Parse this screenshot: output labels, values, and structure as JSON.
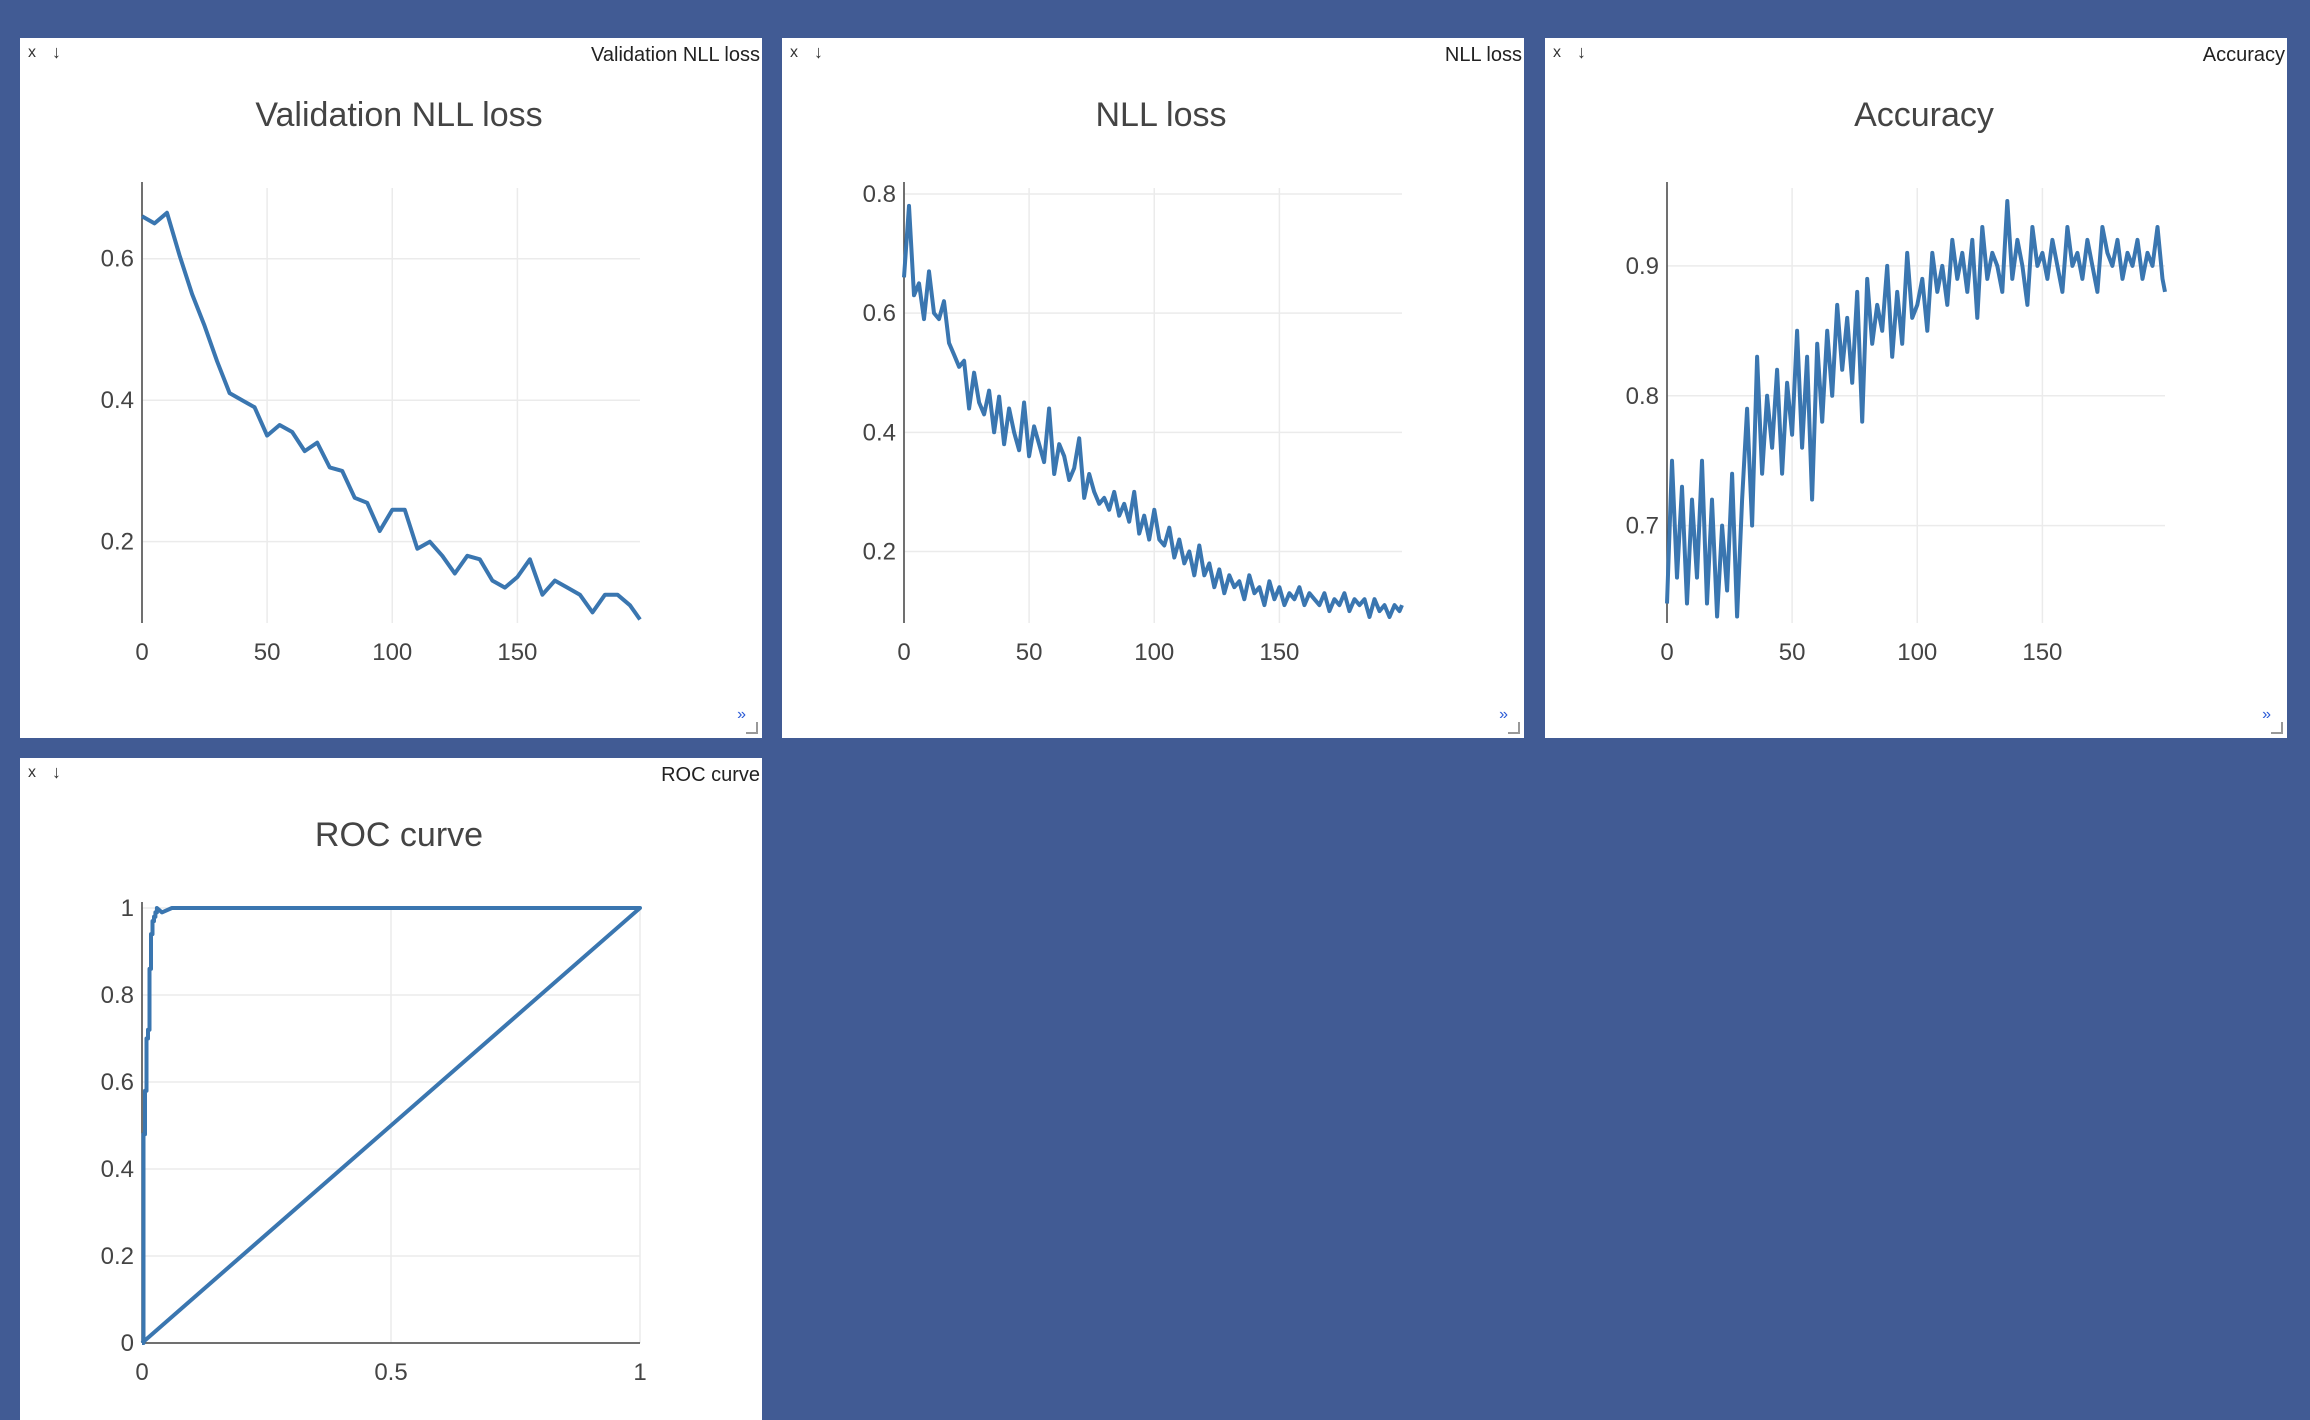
{
  "background": "#415b94",
  "accent": "#3a76b0",
  "panes": [
    {
      "label": "Validation NLL loss",
      "close": "x",
      "download": "↓",
      "expand": "»"
    },
    {
      "label": "NLL loss",
      "close": "x",
      "download": "↓",
      "expand": "»"
    },
    {
      "label": "Accuracy",
      "close": "x",
      "download": "↓",
      "expand": "»"
    },
    {
      "label": "ROC curve",
      "close": "x",
      "download": "↓",
      "expand": "»"
    }
  ],
  "chart_data": [
    {
      "type": "line",
      "title": "Validation NLL loss",
      "xlabel": "",
      "ylabel": "",
      "xlim": [
        0,
        199
      ],
      "ylim": [
        0.085,
        0.7
      ],
      "xticks": [
        0,
        50,
        100,
        150
      ],
      "yticks": [
        0.2,
        0.4,
        0.6
      ],
      "grid": true,
      "series": [
        {
          "x": [
            0,
            5,
            10,
            15,
            20,
            25,
            30,
            35,
            40,
            45,
            50,
            55,
            60,
            65,
            70,
            75,
            80,
            85,
            90,
            95,
            100,
            105,
            110,
            115,
            120,
            125,
            130,
            135,
            140,
            145,
            150,
            155,
            160,
            165,
            170,
            175,
            180,
            185,
            190,
            195,
            199
          ],
          "y": [
            0.66,
            0.65,
            0.665,
            0.605,
            0.55,
            0.505,
            0.455,
            0.41,
            0.4,
            0.39,
            0.35,
            0.365,
            0.355,
            0.328,
            0.34,
            0.305,
            0.3,
            0.262,
            0.255,
            0.215,
            0.245,
            0.245,
            0.19,
            0.2,
            0.18,
            0.155,
            0.18,
            0.175,
            0.145,
            0.135,
            0.15,
            0.175,
            0.125,
            0.145,
            0.135,
            0.125,
            0.1,
            0.125,
            0.125,
            0.11,
            0.09
          ]
        }
      ]
    },
    {
      "type": "line",
      "title": "NLL loss",
      "xlabel": "",
      "ylabel": "",
      "xlim": [
        0,
        199
      ],
      "ylim": [
        0.08,
        0.81
      ],
      "xticks": [
        0,
        50,
        100,
        150
      ],
      "yticks": [
        0.2,
        0.4,
        0.6,
        0.8
      ],
      "grid": true,
      "series": [
        {
          "x": [
            0,
            2,
            4,
            6,
            8,
            10,
            12,
            14,
            16,
            18,
            20,
            22,
            24,
            26,
            28,
            30,
            32,
            34,
            36,
            38,
            40,
            42,
            44,
            46,
            48,
            50,
            52,
            54,
            56,
            58,
            60,
            62,
            64,
            66,
            68,
            70,
            72,
            74,
            76,
            78,
            80,
            82,
            84,
            86,
            88,
            90,
            92,
            94,
            96,
            98,
            100,
            102,
            104,
            106,
            108,
            110,
            112,
            114,
            116,
            118,
            120,
            122,
            124,
            126,
            128,
            130,
            132,
            134,
            136,
            138,
            140,
            142,
            144,
            146,
            148,
            150,
            152,
            154,
            156,
            158,
            160,
            162,
            164,
            166,
            168,
            170,
            172,
            174,
            176,
            178,
            180,
            182,
            184,
            186,
            188,
            190,
            192,
            194,
            196,
            198,
            199
          ],
          "y": [
            0.66,
            0.78,
            0.63,
            0.65,
            0.59,
            0.67,
            0.6,
            0.59,
            0.62,
            0.55,
            0.53,
            0.51,
            0.52,
            0.44,
            0.5,
            0.45,
            0.43,
            0.47,
            0.4,
            0.46,
            0.38,
            0.44,
            0.4,
            0.37,
            0.45,
            0.36,
            0.41,
            0.38,
            0.35,
            0.44,
            0.33,
            0.38,
            0.36,
            0.32,
            0.34,
            0.39,
            0.29,
            0.33,
            0.3,
            0.28,
            0.29,
            0.27,
            0.3,
            0.26,
            0.28,
            0.25,
            0.3,
            0.23,
            0.26,
            0.22,
            0.27,
            0.22,
            0.21,
            0.24,
            0.19,
            0.22,
            0.18,
            0.2,
            0.16,
            0.21,
            0.16,
            0.18,
            0.14,
            0.17,
            0.13,
            0.16,
            0.14,
            0.15,
            0.12,
            0.16,
            0.13,
            0.14,
            0.11,
            0.15,
            0.12,
            0.14,
            0.11,
            0.13,
            0.12,
            0.14,
            0.11,
            0.13,
            0.12,
            0.11,
            0.13,
            0.1,
            0.12,
            0.11,
            0.13,
            0.1,
            0.12,
            0.11,
            0.12,
            0.09,
            0.12,
            0.1,
            0.11,
            0.09,
            0.11,
            0.1,
            0.11
          ]
        }
      ]
    },
    {
      "type": "line",
      "title": "Accuracy",
      "xlabel": "",
      "ylabel": "",
      "xlim": [
        0,
        199
      ],
      "ylim": [
        0.625,
        0.96
      ],
      "xticks": [
        0,
        50,
        100,
        150
      ],
      "yticks": [
        0.7,
        0.8,
        0.9
      ],
      "grid": true,
      "series": [
        {
          "x": [
            0,
            2,
            4,
            6,
            8,
            10,
            12,
            14,
            16,
            18,
            20,
            22,
            24,
            26,
            28,
            30,
            32,
            34,
            36,
            38,
            40,
            42,
            44,
            46,
            48,
            50,
            52,
            54,
            56,
            58,
            60,
            62,
            64,
            66,
            68,
            70,
            72,
            74,
            76,
            78,
            80,
            82,
            84,
            86,
            88,
            90,
            92,
            94,
            96,
            98,
            100,
            102,
            104,
            106,
            108,
            110,
            112,
            114,
            116,
            118,
            120,
            122,
            124,
            126,
            128,
            130,
            132,
            134,
            136,
            138,
            140,
            142,
            144,
            146,
            148,
            150,
            152,
            154,
            156,
            158,
            160,
            162,
            164,
            166,
            168,
            170,
            172,
            174,
            176,
            178,
            180,
            182,
            184,
            186,
            188,
            190,
            192,
            194,
            196,
            198,
            199
          ],
          "y": [
            0.64,
            0.75,
            0.66,
            0.73,
            0.64,
            0.72,
            0.66,
            0.75,
            0.64,
            0.72,
            0.63,
            0.7,
            0.65,
            0.74,
            0.63,
            0.72,
            0.79,
            0.7,
            0.83,
            0.74,
            0.8,
            0.76,
            0.82,
            0.74,
            0.81,
            0.77,
            0.85,
            0.76,
            0.83,
            0.72,
            0.84,
            0.78,
            0.85,
            0.8,
            0.87,
            0.82,
            0.86,
            0.81,
            0.88,
            0.78,
            0.89,
            0.84,
            0.87,
            0.85,
            0.9,
            0.83,
            0.88,
            0.84,
            0.91,
            0.86,
            0.87,
            0.89,
            0.85,
            0.91,
            0.88,
            0.9,
            0.87,
            0.92,
            0.89,
            0.91,
            0.88,
            0.92,
            0.86,
            0.93,
            0.89,
            0.91,
            0.9,
            0.88,
            0.95,
            0.89,
            0.92,
            0.9,
            0.87,
            0.93,
            0.9,
            0.91,
            0.89,
            0.92,
            0.9,
            0.88,
            0.93,
            0.9,
            0.91,
            0.89,
            0.92,
            0.9,
            0.88,
            0.93,
            0.91,
            0.9,
            0.92,
            0.89,
            0.91,
            0.9,
            0.92,
            0.89,
            0.91,
            0.9,
            0.93,
            0.89,
            0.88
          ]
        }
      ]
    },
    {
      "type": "line",
      "title": "ROC curve",
      "xlabel": "",
      "ylabel": "",
      "xlim": [
        0,
        1
      ],
      "ylim": [
        0,
        1
      ],
      "xticks": [
        0,
        0.5,
        1
      ],
      "yticks": [
        0,
        0.2,
        0.4,
        0.6,
        0.8,
        1
      ],
      "grid": true,
      "series": [
        {
          "x": [
            0,
            0.003,
            0.003,
            0.006,
            0.006,
            0.009,
            0.009,
            0.012,
            0.012,
            0.015,
            0.015,
            0.018,
            0.018,
            0.021,
            0.021,
            0.024,
            0.024,
            0.027,
            0.027,
            0.03,
            0.03,
            0.04,
            0.06,
            1,
            0
          ],
          "y": [
            0,
            0,
            0.48,
            0.48,
            0.58,
            0.58,
            0.7,
            0.7,
            0.72,
            0.72,
            0.86,
            0.86,
            0.94,
            0.94,
            0.97,
            0.97,
            0.98,
            0.98,
            0.99,
            0.99,
            1,
            0.99,
            1,
            1,
            0
          ]
        }
      ]
    }
  ]
}
